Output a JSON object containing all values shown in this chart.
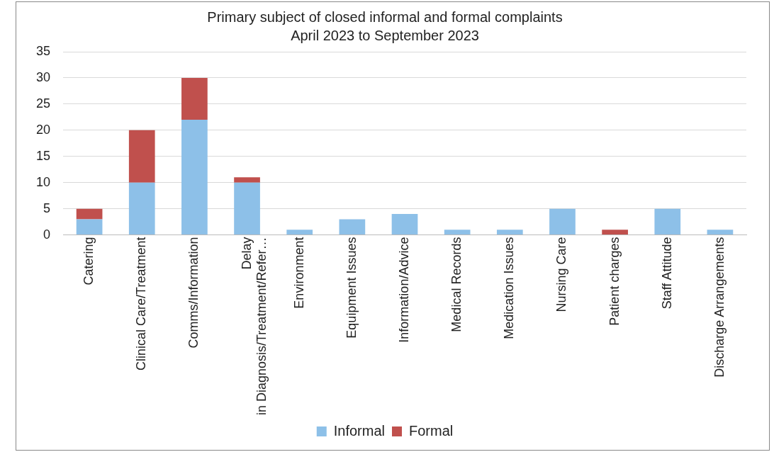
{
  "chart_data": {
    "type": "bar",
    "title": "Primary subject of closed informal and formal complaints",
    "subtitle": "April 2023 to September 2023",
    "categories": [
      "Catering",
      "Clinical Care/Treatment",
      "Comms/Information",
      "Delay in Diagnosis/Treatment/Refer…",
      "Environment",
      "Equipment Issues",
      "Information/Advice",
      "Medical Records",
      "Medication Issues",
      "Nursing Care",
      "Patient charges",
      "Staff Attitude",
      "Discharge Arrangements"
    ],
    "series": [
      {
        "name": "Informal",
        "color": "#8dc0e8",
        "values": [
          3,
          10,
          22,
          10,
          1,
          3,
          4,
          1,
          1,
          5,
          0,
          5,
          1
        ]
      },
      {
        "name": "Formal",
        "color": "#c0504d",
        "values": [
          2,
          10,
          8,
          1,
          0,
          0,
          0,
          0,
          0,
          0,
          1,
          0,
          0
        ]
      }
    ],
    "stacked": true,
    "ylim": [
      0,
      35
    ],
    "yticks": [
      0,
      5,
      10,
      15,
      20,
      25,
      30,
      35
    ],
    "grid": "y",
    "legend": "bottom"
  }
}
